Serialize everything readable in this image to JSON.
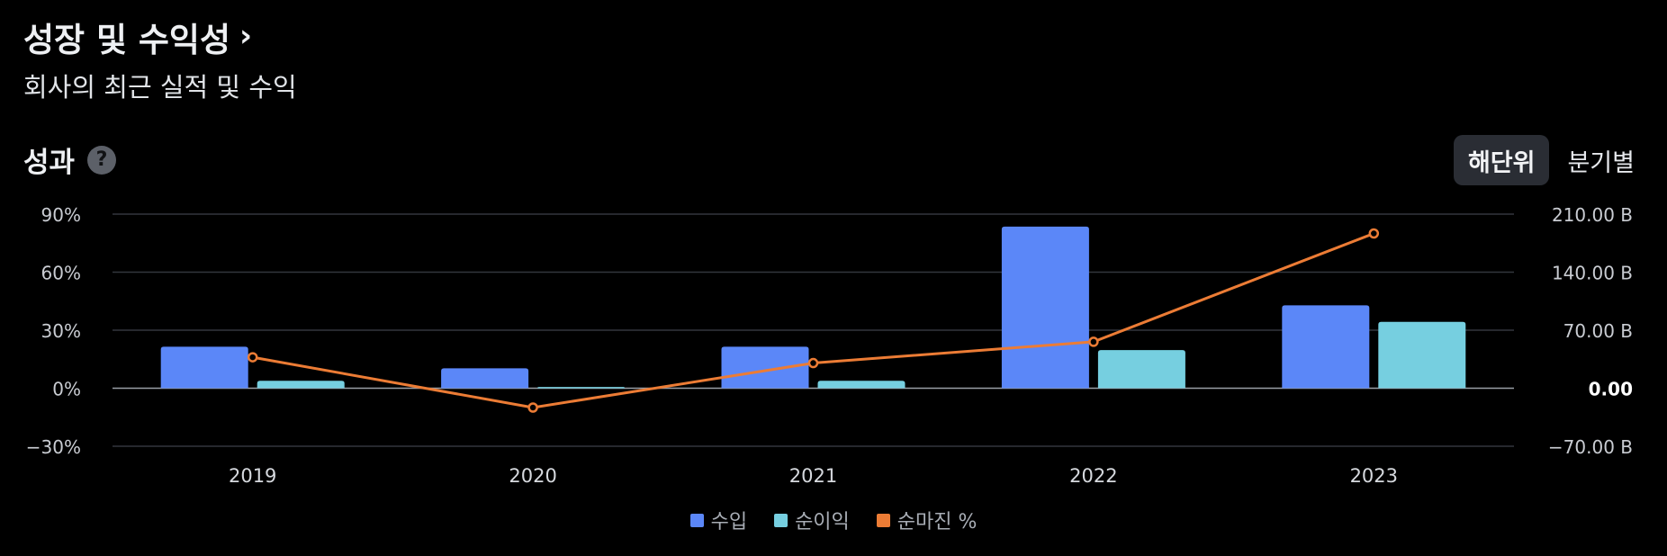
{
  "header": {
    "title": "성장 및 수익성",
    "subtitle": "회사의 최근 실적 및 수익"
  },
  "section": {
    "title": "성과",
    "help_label": "?"
  },
  "toggle": {
    "annual": "해단위",
    "quarterly": "분기별",
    "selected": "annual"
  },
  "colors": {
    "revenue": "#5b87f8",
    "net_income": "#76cfe0",
    "net_margin": "#ec7c35",
    "grid": "#33363d",
    "zero_line": "#9a9ea6"
  },
  "chart_data": {
    "type": "bar",
    "categories": [
      "2019",
      "2020",
      "2021",
      "2022",
      "2023"
    ],
    "series": [
      {
        "name": "수입",
        "axis": "right",
        "values": [
          50,
          24,
          50,
          195,
          100
        ]
      },
      {
        "name": "순이익",
        "axis": "right",
        "values": [
          9,
          1.5,
          9,
          46,
          80
        ]
      },
      {
        "name": "순마진 %",
        "axis": "left",
        "type": "line",
        "values": [
          16,
          -10,
          13,
          24,
          80
        ]
      }
    ],
    "left_axis": {
      "range": [
        -30,
        90
      ],
      "ticks": [
        -30,
        0,
        30,
        60,
        90
      ],
      "tick_labels": [
        "−30%",
        "0%",
        "30%",
        "60%",
        "90%"
      ]
    },
    "right_axis": {
      "range": [
        -70,
        210
      ],
      "ticks": [
        -70,
        0,
        70,
        140,
        210
      ],
      "tick_labels": [
        "−70.00 B",
        "0.00",
        "70.00 B",
        "140.00 B",
        "210.00 B"
      ]
    },
    "grid": true,
    "legend_position": "bottom-center"
  }
}
